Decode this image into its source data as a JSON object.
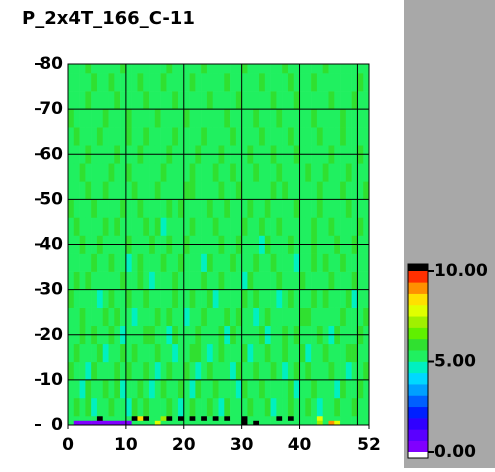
{
  "chart_data": {
    "type": "heatmap",
    "title": "P_2x4T_166_C-11",
    "xbins": [
      0,
      1,
      2,
      3,
      4,
      5,
      6,
      7,
      8,
      9,
      10,
      11,
      12,
      13,
      14,
      15,
      16,
      17,
      18,
      19,
      20,
      21,
      22,
      23,
      24,
      25,
      26,
      27,
      28,
      29,
      30,
      31,
      32,
      33,
      34,
      35,
      36,
      37,
      38,
      39,
      40,
      41,
      42,
      43,
      44,
      45,
      46,
      47,
      48,
      49,
      50,
      51,
      52
    ],
    "ybins": [
      0,
      1,
      2,
      6,
      10,
      14,
      18,
      22,
      26,
      30,
      34,
      38,
      42,
      46,
      50,
      54,
      58,
      62,
      66,
      70,
      74,
      78,
      80
    ],
    "xlim": [
      0,
      52
    ],
    "ylim": [
      0,
      80
    ],
    "xticks": [
      0,
      10,
      20,
      30,
      40,
      52
    ],
    "yticks": [
      0,
      10,
      20,
      30,
      40,
      50,
      60,
      70,
      80
    ],
    "xgrid": [
      10,
      20,
      30,
      40,
      50
    ],
    "zlim": [
      0,
      10
    ],
    "zticks": [
      {
        "value": 0,
        "label": "0.00"
      },
      {
        "value": 5,
        "label": "5.00"
      },
      {
        "value": 10,
        "label": "10.00"
      }
    ],
    "colors": [
      "#8000ff",
      "#5a00ff",
      "#3000ff",
      "#0020ff",
      "#0060ff",
      "#00a0ff",
      "#00d8ff",
      "#00f0c0",
      "#20f060",
      "#30e030",
      "#60f000",
      "#a0f000",
      "#e0ff00",
      "#ffe000",
      "#ff9000",
      "#ff3000"
    ],
    "over_color": "#000000",
    "under_color": "#ffffff",
    "z": [
      [
        5.3,
        0.4,
        0.4,
        0.4,
        0.4,
        0.4,
        0.4,
        0.4,
        0.4,
        0.4,
        0.4,
        5.6,
        5.5,
        5.4,
        5.6,
        7.5,
        5.5,
        5.3,
        5.6,
        5.4,
        5.5,
        5.3,
        5.6,
        5.5,
        5.4,
        5.6,
        5.5,
        5.3,
        5.6,
        5.5,
        10.5,
        5.5,
        10.5,
        5.4,
        5.6,
        5.5,
        5.3,
        5.4,
        5.6,
        5.5,
        5.5,
        5.4,
        5.3,
        7.2,
        5.6,
        8.8,
        7.5,
        5.3,
        5.4,
        5.5,
        5.3,
        5.4
      ],
      [
        5.5,
        5.4,
        5.6,
        5.5,
        5.3,
        10.5,
        5.5,
        5.6,
        5.4,
        5.5,
        5.3,
        10.5,
        8.5,
        10.5,
        5.5,
        5.6,
        7.0,
        10.5,
        5.4,
        10.5,
        5.5,
        10.5,
        5.6,
        10.5,
        5.3,
        10.5,
        5.5,
        10.5,
        5.4,
        5.6,
        10.5,
        5.5,
        5.3,
        5.6,
        5.5,
        5.4,
        10.5,
        5.5,
        10.5,
        5.6,
        5.4,
        5.5,
        5.3,
        7.5,
        5.6,
        5.5,
        5.4,
        5.3,
        5.5,
        5.6,
        5.4,
        5.5
      ],
      [
        5.5,
        5.8,
        5.2,
        6.0,
        4.7,
        5.6,
        5.3,
        5.9,
        5.1,
        5.5,
        4.8,
        5.7,
        5.4,
        6.1,
        5.2,
        5.6,
        5.0,
        5.8,
        5.3,
        4.7,
        5.6,
        5.9,
        5.4,
        5.2,
        5.7,
        5.5,
        4.9,
        5.8,
        5.3,
        5.6,
        5.1,
        5.9,
        5.4,
        5.2,
        5.7,
        4.8,
        5.6,
        5.3,
        6.0,
        5.5,
        5.1,
        5.8,
        5.4,
        4.7,
        5.6,
        5.2,
        5.9,
        5.5,
        5.3,
        5.7,
        5.0,
        5.6
      ],
      [
        5.2,
        5.6,
        4.9,
        5.8,
        5.4,
        5.1,
        5.7,
        5.3,
        6.0,
        4.8,
        5.5,
        5.2,
        5.9,
        5.4,
        4.7,
        5.6,
        5.8,
        5.1,
        5.5,
        5.9,
        5.3,
        4.8,
        5.7,
        5.5,
        5.2,
        6.0,
        5.4,
        5.1,
        5.6,
        4.7,
        5.8,
        5.3,
        5.5,
        5.9,
        5.0,
        5.6,
        5.4,
        5.2,
        5.7,
        4.9,
        5.5,
        5.3,
        5.8,
        5.6,
        5.1,
        5.4,
        4.8,
        5.7,
        5.5,
        5.2,
        5.9,
        5.3
      ],
      [
        5.7,
        5.3,
        5.5,
        4.8,
        5.9,
        5.6,
        5.2,
        5.4,
        5.8,
        5.5,
        6.1,
        5.0,
        5.3,
        5.7,
        5.6,
        4.9,
        5.4,
        5.9,
        5.2,
        5.5,
        5.8,
        5.6,
        4.7,
        5.3,
        5.9,
        5.4,
        5.6,
        5.2,
        4.8,
        5.7,
        5.5,
        5.1,
        5.8,
        5.4,
        5.6,
        5.9,
        5.2,
        4.8,
        5.5,
        5.7,
        5.3,
        5.9,
        5.1,
        5.6,
        5.4,
        5.8,
        5.2,
        5.5,
        4.9,
        5.6,
        5.4,
        5.7
      ],
      [
        5.4,
        5.9,
        5.1,
        5.6,
        5.3,
        5.8,
        4.7,
        5.5,
        5.2,
        5.7,
        5.4,
        5.9,
        5.6,
        5.0,
        5.5,
        5.8,
        5.3,
        5.6,
        4.8,
        5.4,
        5.1,
        5.7,
        5.9,
        5.5,
        4.9,
        5.3,
        5.8,
        5.6,
        5.4,
        5.2,
        5.9,
        4.8,
        5.5,
        5.3,
        5.7,
        5.1,
        5.6,
        5.9,
        5.4,
        5.2,
        5.8,
        4.7,
        5.5,
        5.3,
        5.9,
        5.6,
        5.4,
        5.1,
        5.7,
        5.8,
        5.3,
        5.5
      ],
      [
        5.6,
        5.2,
        5.7,
        5.4,
        6.0,
        5.1,
        5.5,
        5.8,
        5.3,
        4.9,
        5.6,
        5.4,
        5.2,
        5.8,
        5.9,
        5.3,
        5.6,
        4.7,
        5.7,
        5.5,
        5.2,
        5.4,
        5.8,
        5.6,
        5.3,
        5.1,
        5.7,
        4.9,
        5.9,
        5.5,
        5.4,
        5.6,
        5.2,
        5.8,
        4.8,
        5.5,
        5.3,
        5.7,
        5.1,
        5.9,
        5.6,
        5.4,
        5.2,
        5.8,
        5.5,
        4.9,
        5.7,
        5.3,
        5.6,
        5.4,
        5.8,
        5.2
      ],
      [
        5.3,
        5.5,
        5.8,
        5.1,
        5.6,
        5.4,
        5.9,
        5.2,
        5.7,
        5.5,
        5.3,
        4.8,
        5.6,
        5.4,
        5.1,
        5.8,
        5.5,
        5.9,
        5.3,
        5.6,
        4.7,
        5.5,
        5.2,
        5.8,
        5.6,
        5.4,
        5.3,
        5.7,
        5.5,
        5.9,
        5.2,
        5.6,
        4.9,
        5.4,
        5.8,
        5.3,
        5.5,
        5.1,
        5.6,
        5.4,
        5.7,
        5.9,
        5.3,
        5.5,
        5.2,
        5.6,
        5.4,
        5.8,
        5.1,
        5.5,
        5.6,
        5.9
      ],
      [
        5.8,
        5.4,
        5.2,
        5.6,
        5.5,
        4.9,
        5.3,
        5.7,
        5.6,
        5.4,
        5.8,
        5.5,
        5.1,
        5.9,
        5.3,
        5.4,
        5.6,
        5.2,
        5.8,
        5.0,
        5.5,
        5.7,
        5.4,
        5.3,
        5.9,
        4.8,
        5.6,
        5.5,
        5.2,
        5.4,
        5.7,
        5.5,
        5.8,
        5.1,
        5.6,
        5.4,
        4.8,
        5.5,
        5.9,
        5.3,
        5.2,
        5.6,
        5.7,
        5.4,
        5.8,
        5.5,
        5.3,
        5.6,
        5.9,
        4.7,
        5.5,
        5.4
      ],
      [
        5.5,
        5.7,
        5.4,
        5.9,
        5.2,
        5.6,
        5.5,
        5.1,
        5.4,
        5.8,
        5.6,
        5.3,
        5.7,
        5.5,
        4.8,
        5.6,
        5.2,
        5.4,
        5.9,
        5.5,
        5.3,
        5.6,
        5.1,
        5.7,
        5.4,
        5.5,
        5.9,
        5.2,
        5.6,
        5.3,
        4.9,
        5.8,
        5.5,
        5.6,
        5.4,
        5.2,
        5.7,
        5.6,
        5.3,
        5.5,
        5.9,
        5.4,
        5.1,
        5.6,
        5.3,
        5.7,
        5.5,
        5.2,
        5.4,
        5.8,
        5.6,
        5.3
      ],
      [
        5.2,
        5.6,
        5.5,
        5.3,
        5.8,
        5.4,
        5.2,
        5.9,
        5.5,
        5.6,
        4.7,
        5.4,
        5.8,
        5.3,
        5.6,
        5.5,
        5.9,
        5.1,
        5.4,
        5.7,
        5.6,
        5.2,
        5.5,
        4.9,
        5.8,
        5.6,
        5.4,
        5.3,
        5.7,
        5.5,
        5.6,
        5.2,
        5.9,
        5.4,
        5.1,
        5.7,
        5.5,
        5.3,
        5.6,
        4.8,
        5.4,
        5.5,
        5.9,
        5.2,
        5.7,
        5.4,
        5.6,
        5.8,
        5.3,
        5.5,
        5.2,
        5.6
      ],
      [
        5.6,
        5.3,
        5.9,
        5.5,
        5.4,
        5.7,
        5.6,
        5.3,
        5.2,
        5.5,
        5.8,
        5.6,
        5.4,
        5.1,
        5.7,
        5.3,
        5.5,
        5.8,
        5.6,
        5.2,
        5.9,
        5.4,
        5.6,
        5.5,
        5.1,
        5.3,
        5.8,
        5.6,
        5.4,
        5.7,
        5.5,
        5.3,
        5.6,
        4.8,
        5.9,
        5.5,
        5.2,
        5.4,
        5.7,
        5.6,
        5.3,
        5.5,
        5.8,
        5.4,
        5.1,
        5.6,
        5.9,
        5.3,
        5.5,
        5.7,
        5.4,
        5.6
      ],
      [
        5.4,
        5.8,
        5.5,
        5.2,
        5.6,
        5.3,
        5.7,
        5.5,
        5.9,
        5.4,
        5.2,
        5.6,
        5.5,
        5.8,
        5.3,
        5.7,
        4.9,
        5.5,
        5.6,
        5.4,
        5.2,
        5.8,
        5.5,
        5.6,
        5.3,
        5.9,
        5.4,
        5.2,
        5.5,
        5.6,
        5.8,
        5.4,
        5.3,
        5.7,
        5.5,
        5.6,
        5.9,
        5.2,
        5.4,
        5.5,
        5.6,
        5.1,
        5.7,
        5.5,
        5.4,
        5.8,
        5.3,
        5.6,
        5.5,
        5.2,
        5.9,
        5.4
      ],
      [
        5.7,
        5.5,
        5.3,
        5.6,
        5.9,
        5.5,
        5.4,
        5.2,
        5.6,
        5.7,
        5.5,
        5.3,
        5.9,
        5.4,
        5.6,
        5.5,
        5.2,
        5.7,
        5.3,
        5.8,
        5.5,
        5.6,
        5.4,
        5.2,
        5.7,
        5.5,
        5.3,
        5.9,
        5.6,
        5.4,
        5.5,
        5.7,
        5.2,
        5.6,
        5.8,
        5.4,
        5.5,
        5.3,
        5.6,
        5.9,
        5.5,
        5.4,
        5.2,
        5.7,
        5.6,
        5.3,
        5.5,
        5.4,
        5.8,
        5.6,
        5.5,
        5.3
      ],
      [
        5.5,
        5.2,
        5.6,
        5.8,
        5.4,
        5.5,
        5.9,
        5.6,
        5.3,
        5.5,
        5.4,
        5.7,
        5.2,
        5.6,
        5.5,
        5.8,
        5.4,
        5.6,
        5.5,
        5.3,
        5.7,
        5.9,
        5.2,
        5.5,
        5.6,
        5.4,
        5.7,
        5.5,
        5.3,
        5.8,
        5.6,
        5.4,
        5.5,
        5.2,
        5.6,
        5.7,
        5.3,
        5.9,
        5.5,
        5.4,
        5.6,
        5.2,
        5.5,
        5.8,
        5.4,
        5.6,
        5.5,
        5.7,
        5.3,
        5.5,
        5.6,
        5.8
      ],
      [
        5.3,
        5.6,
        5.7,
        5.4,
        5.5,
        5.2,
        5.6,
        5.8,
        5.5,
        5.3,
        5.9,
        5.5,
        5.6,
        5.4,
        5.2,
        5.5,
        5.7,
        5.3,
        5.6,
        5.5,
        5.4,
        5.8,
        5.6,
        5.3,
        5.5,
        5.7,
        5.2,
        5.6,
        5.9,
        5.5,
        5.4,
        5.3,
        5.7,
        5.6,
        5.5,
        5.2,
        5.8,
        5.4,
        5.6,
        5.5,
        5.3,
        5.7,
        5.5,
        5.4,
        5.9,
        5.2,
        5.6,
        5.5,
        5.7,
        5.4,
        5.3,
        5.6
      ],
      [
        5.6,
        5.4,
        5.5,
        5.9,
        5.3,
        5.6,
        5.5,
        5.2,
        5.7,
        5.6,
        5.4,
        5.5,
        5.8,
        5.3,
        5.6,
        5.4,
        5.5,
        5.9,
        5.2,
        5.6,
        5.5,
        5.3,
        5.7,
        5.4,
        5.6,
        5.5,
        5.8,
        5.3,
        5.5,
        5.6,
        5.2,
        5.7,
        5.4,
        5.5,
        5.6,
        5.9,
        5.3,
        5.5,
        5.4,
        5.7,
        5.6,
        5.2,
        5.5,
        5.6,
        5.3,
        5.8,
        5.4,
        5.5,
        5.6,
        5.3,
        5.7,
        5.5
      ],
      [
        5.4,
        5.7,
        5.3,
        5.5,
        5.6,
        5.8,
        5.2,
        5.5,
        5.4,
        5.6,
        5.7,
        5.3,
        5.5,
        5.9,
        5.4,
        5.6,
        5.2,
        5.5,
        5.8,
        5.4,
        5.6,
        5.5,
        5.3,
        5.7,
        5.5,
        5.2,
        5.6,
        5.4,
        5.8,
        5.5,
        5.6,
        5.3,
        5.5,
        5.9,
        5.4,
        5.6,
        5.5,
        5.2,
        5.7,
        5.3,
        5.5,
        5.6,
        5.4,
        5.8,
        5.5,
        5.6,
        5.2,
        5.7,
        5.4,
        5.5,
        5.6,
        5.3
      ],
      [
        5.8,
        5.5,
        5.6,
        5.3,
        5.4,
        5.5,
        5.7,
        5.6,
        5.2,
        5.5,
        5.9,
        5.4,
        5.6,
        5.5,
        5.3,
        5.7,
        5.6,
        5.4,
        5.5,
        5.2,
        5.8,
        5.6,
        5.5,
        5.4,
        5.3,
        5.6,
        5.5,
        5.7,
        5.2,
        5.5,
        5.6,
        5.4,
        5.8,
        5.5,
        5.3,
        5.6,
        5.7,
        5.5,
        5.4,
        5.2,
        5.6,
        5.5,
        5.9,
        5.3,
        5.6,
        5.4,
        5.5,
        5.7,
        5.2,
        5.6,
        5.5,
        5.4
      ],
      [
        5.5,
        5.3,
        5.6,
        5.7,
        5.5,
        5.4,
        5.6,
        5.3,
        5.8,
        5.5,
        5.2,
        5.6,
        5.4,
        5.7,
        5.5,
        5.6,
        5.3,
        5.5,
        5.9,
        5.6,
        5.4,
        5.2,
        5.5,
        5.6,
        5.8,
        5.3,
        5.5,
        5.4,
        5.6,
        5.7,
        5.5,
        5.2,
        5.6,
        5.4,
        5.5,
        5.8,
        5.3,
        5.6,
        5.5,
        5.7,
        5.4,
        5.6,
        5.3,
        5.5,
        5.2,
        5.7,
        5.6,
        5.4,
        5.5,
        5.8,
        5.3,
        5.6
      ],
      [
        5.6,
        5.5,
        5.4,
        5.2,
        5.7,
        5.6,
        5.5,
        5.8,
        5.4,
        5.3,
        5.6,
        5.5,
        5.7,
        5.2,
        5.6,
        5.4,
        5.8,
        5.5,
        5.3,
        5.6,
        5.5,
        5.7,
        5.4,
        5.6,
        5.2,
        5.5,
        5.6,
        5.8,
        5.4,
        5.3,
        5.5,
        5.6,
        5.4,
        5.7,
        5.2,
        5.5,
        5.6,
        5.4,
        5.8,
        5.5,
        5.6,
        5.3,
        5.7,
        5.5,
        5.6,
        5.4,
        5.3,
        5.5,
        5.6,
        5.2,
        5.8,
        5.5
      ],
      [
        5.4,
        5.6,
        5.5,
        5.7,
        5.3,
        5.5,
        5.6,
        5.4,
        5.5,
        5.8,
        5.3,
        5.6,
        5.5,
        5.4,
        5.6,
        5.2,
        5.5,
        5.7,
        5.6,
        5.4,
        5.3,
        5.5,
        5.6,
        5.8,
        5.5,
        5.4,
        5.6,
        5.3,
        5.5,
        5.6,
        5.7,
        5.4,
        5.5,
        5.3,
        5.6,
        5.5,
        5.4,
        5.7,
        5.2,
        5.6,
        5.5,
        5.4,
        5.6,
        5.3,
        5.7,
        5.5,
        5.6,
        5.2,
        5.5,
        5.4,
        5.6,
        5.5
      ]
    ]
  }
}
